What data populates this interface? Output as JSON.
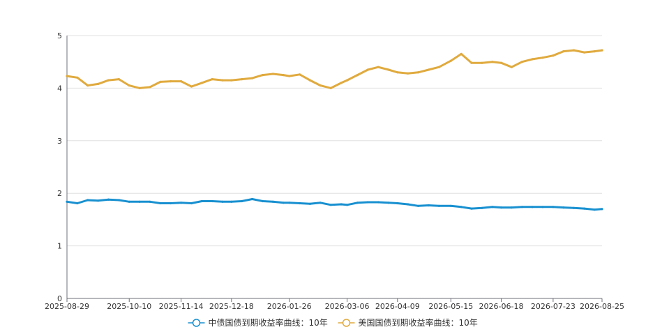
{
  "chart_data": {
    "type": "line",
    "title": "",
    "xlabel": "",
    "ylabel": "",
    "ylim": [
      0,
      5
    ],
    "yticks": [
      "0",
      "1",
      "2",
      "3",
      "4",
      "5"
    ],
    "xticks": [
      "2025-08-29",
      "2025-10-10",
      "2025-11-14",
      "2025-12-18",
      "2026-01-26",
      "2026-03-06",
      "2026-04-09",
      "2026-05-15",
      "2026-06-18",
      "2026-07-23",
      "2026-08-25"
    ],
    "grid": "horizontal",
    "legend_position": "bottom",
    "x": [
      "2025-08-29",
      "2025-09-05",
      "2025-09-12",
      "2025-09-19",
      "2025-09-26",
      "2025-10-03",
      "2025-10-10",
      "2025-10-17",
      "2025-10-24",
      "2025-10-31",
      "2025-11-07",
      "2025-11-14",
      "2025-11-21",
      "2025-11-28",
      "2025-12-05",
      "2025-12-12",
      "2025-12-18",
      "2025-12-25",
      "2026-01-01",
      "2026-01-08",
      "2026-01-15",
      "2026-01-22",
      "2026-01-26",
      "2026-02-02",
      "2026-02-09",
      "2026-02-16",
      "2026-02-23",
      "2026-03-02",
      "2026-03-06",
      "2026-03-13",
      "2026-03-20",
      "2026-03-27",
      "2026-04-03",
      "2026-04-09",
      "2026-04-16",
      "2026-04-23",
      "2026-04-30",
      "2026-05-07",
      "2026-05-15",
      "2026-05-22",
      "2026-05-29",
      "2026-06-05",
      "2026-06-12",
      "2026-06-18",
      "2026-06-25",
      "2026-07-02",
      "2026-07-09",
      "2026-07-16",
      "2026-07-23",
      "2026-07-30",
      "2026-08-06",
      "2026-08-13",
      "2026-08-20",
      "2026-08-25"
    ],
    "series": [
      {
        "name": "中债国债到期收益率曲线：10年",
        "color": "#1890d0",
        "values": [
          1.84,
          1.81,
          1.87,
          1.86,
          1.88,
          1.87,
          1.84,
          1.84,
          1.84,
          1.81,
          1.81,
          1.82,
          1.81,
          1.85,
          1.85,
          1.84,
          1.84,
          1.85,
          1.89,
          1.85,
          1.84,
          1.82,
          1.82,
          1.81,
          1.8,
          1.82,
          1.78,
          1.79,
          1.78,
          1.82,
          1.83,
          1.83,
          1.82,
          1.81,
          1.79,
          1.76,
          1.77,
          1.76,
          1.76,
          1.74,
          1.71,
          1.72,
          1.74,
          1.73,
          1.73,
          1.74,
          1.74,
          1.74,
          1.74,
          1.73,
          1.72,
          1.71,
          1.69,
          1.7
        ]
      },
      {
        "name": "美国国债到期收益率曲线：10年",
        "color": "#e0aa3e",
        "values": [
          4.23,
          4.2,
          4.05,
          4.08,
          4.15,
          4.17,
          4.05,
          4.0,
          4.02,
          4.12,
          4.13,
          4.13,
          4.03,
          4.1,
          4.17,
          4.15,
          4.15,
          4.17,
          4.19,
          4.25,
          4.27,
          4.25,
          4.23,
          4.26,
          4.15,
          4.05,
          4.0,
          4.1,
          4.15,
          4.25,
          4.35,
          4.4,
          4.35,
          4.3,
          4.28,
          4.3,
          4.35,
          4.4,
          4.52,
          4.65,
          4.48,
          4.48,
          4.5,
          4.48,
          4.4,
          4.5,
          4.55,
          4.58,
          4.62,
          4.7,
          4.72,
          4.68,
          4.7,
          4.72
        ]
      }
    ]
  }
}
